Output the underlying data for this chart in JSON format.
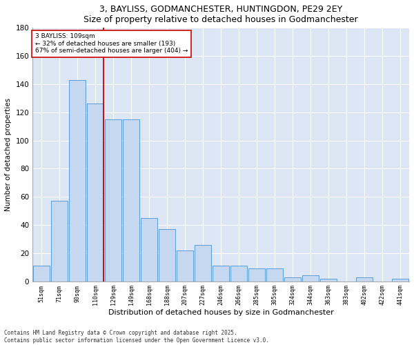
{
  "title1": "3, BAYLISS, GODMANCHESTER, HUNTINGDON, PE29 2EY",
  "title2": "Size of property relative to detached houses in Godmanchester",
  "xlabel": "Distribution of detached houses by size in Godmanchester",
  "ylabel": "Number of detached properties",
  "categories": [
    "51sqm",
    "71sqm",
    "90sqm",
    "110sqm",
    "129sqm",
    "149sqm",
    "168sqm",
    "188sqm",
    "207sqm",
    "227sqm",
    "246sqm",
    "266sqm",
    "285sqm",
    "305sqm",
    "324sqm",
    "344sqm",
    "363sqm",
    "383sqm",
    "402sqm",
    "422sqm",
    "441sqm"
  ],
  "values": [
    11,
    57,
    143,
    126,
    115,
    115,
    45,
    37,
    22,
    26,
    11,
    11,
    9,
    9,
    3,
    4,
    2,
    0,
    3,
    0,
    2
  ],
  "bar_color": "#c5d8f0",
  "bar_edge_color": "#5b9bd5",
  "vline_index": 3,
  "vline_color": "#cc0000",
  "annotation_text": "3 BAYLISS: 109sqm\n← 32% of detached houses are smaller (193)\n67% of semi-detached houses are larger (404) →",
  "annotation_box_color": "#ffffff",
  "annotation_box_edge_color": "#cc0000",
  "footer_line1": "Contains HM Land Registry data © Crown copyright and database right 2025.",
  "footer_line2": "Contains public sector information licensed under the Open Government Licence v3.0.",
  "background_color": "#dce6f5",
  "ylim": [
    0,
    180
  ],
  "yticks": [
    0,
    20,
    40,
    60,
    80,
    100,
    120,
    140,
    160,
    180
  ],
  "figwidth": 6.0,
  "figheight": 5.0,
  "dpi": 100
}
